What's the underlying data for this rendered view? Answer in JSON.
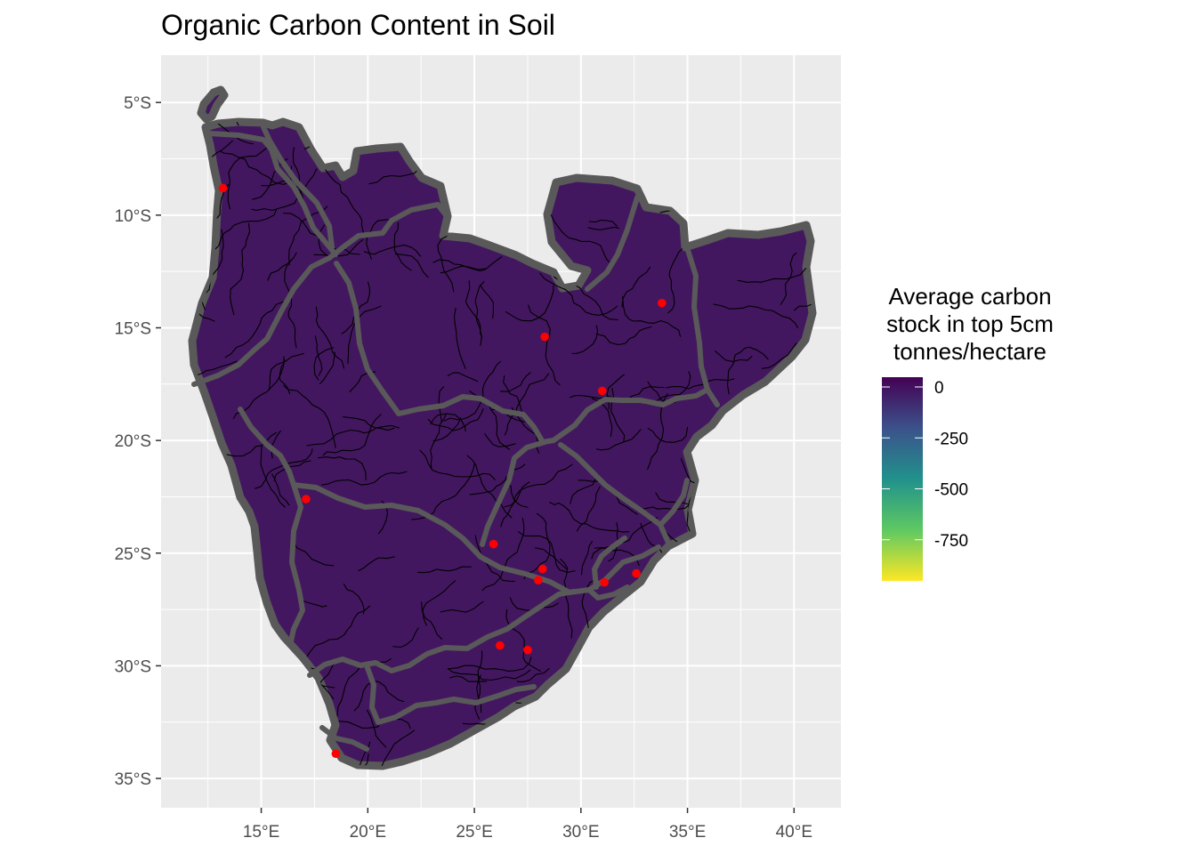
{
  "title": "Organic Carbon Content in Soil",
  "map": {
    "x_ticks": [
      "15°E",
      "20°E",
      "25°E",
      "30°E",
      "35°E",
      "40°E"
    ],
    "x_tick_values": [
      15,
      20,
      25,
      30,
      35,
      40
    ],
    "y_ticks": [
      "5°S",
      "10°S",
      "15°S",
      "20°S",
      "25°S",
      "30°S",
      "35°S"
    ],
    "y_tick_values": [
      -5,
      -10,
      -15,
      -20,
      -25,
      -30,
      -35
    ],
    "x_range": [
      10.3,
      42.2
    ],
    "y_range": [
      -36.3,
      -2.9
    ],
    "panel_background": "#ebebeb",
    "grid_color": "#ffffff",
    "fill_color": "#43175f",
    "river_color": "#000000",
    "basin_border_color": "#595959",
    "point_color": "#ff0000",
    "points": [
      {
        "lon": 13.2,
        "lat": -8.8
      },
      {
        "lon": 33.8,
        "lat": -13.9
      },
      {
        "lon": 28.3,
        "lat": -15.4
      },
      {
        "lon": 31.0,
        "lat": -17.8
      },
      {
        "lon": 17.1,
        "lat": -22.6
      },
      {
        "lon": 25.9,
        "lat": -24.6
      },
      {
        "lon": 28.2,
        "lat": -25.7
      },
      {
        "lon": 28.0,
        "lat": -26.2
      },
      {
        "lon": 31.1,
        "lat": -26.3
      },
      {
        "lon": 32.6,
        "lat": -25.9
      },
      {
        "lon": 26.2,
        "lat": -29.1
      },
      {
        "lon": 27.5,
        "lat": -29.3
      },
      {
        "lon": 18.5,
        "lat": -33.9
      }
    ]
  },
  "legend": {
    "title_lines": [
      "Average carbon",
      "stock in top 5cm",
      " tonnes/hectare"
    ],
    "labels": [
      "0",
      "-250",
      "-500",
      "-750"
    ],
    "label_values": [
      0,
      -250,
      -500,
      -750
    ],
    "range": [
      -1000,
      0
    ],
    "colors": [
      "#fde725",
      "#5ec962",
      "#21918c",
      "#3b528b",
      "#440154"
    ]
  }
}
